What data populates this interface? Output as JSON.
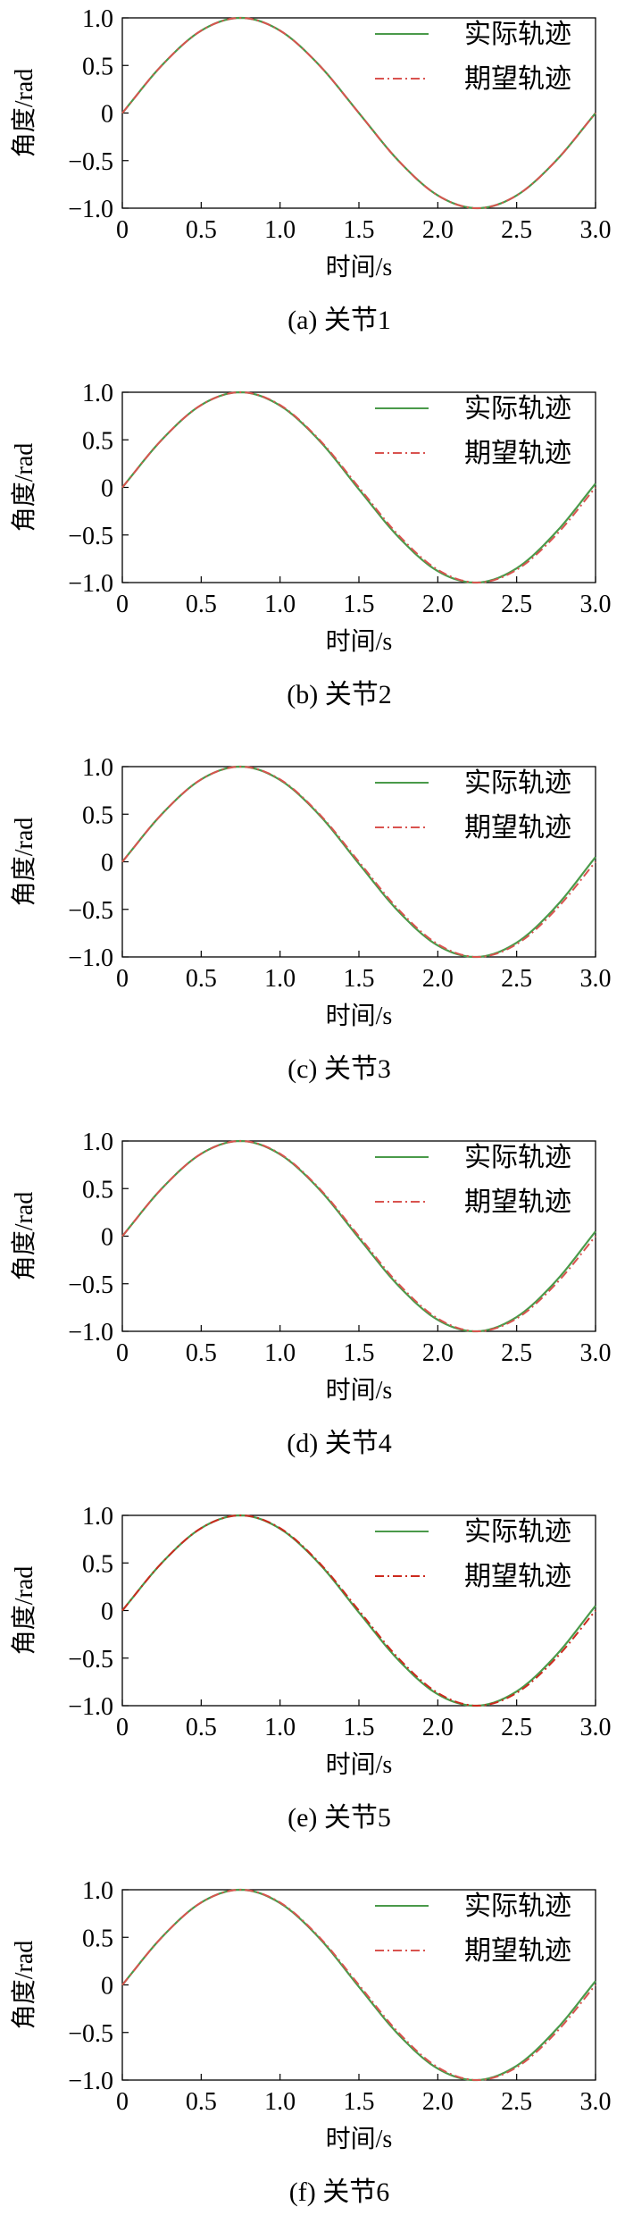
{
  "chart_data": [
    {
      "type": "line",
      "caption": "(a)  关节1",
      "xlabel": "时间/s",
      "ylabel": "角度/rad",
      "xlim": [
        0,
        3.0
      ],
      "ylim": [
        -1.0,
        1.0
      ],
      "x_ticks": [
        "0",
        "0.5",
        "1.0",
        "1.5",
        "2.0",
        "2.5",
        "3.0"
      ],
      "y_ticks": [
        "1.0",
        "0.5",
        "0",
        "−0.5",
        "−1.0"
      ],
      "grid": false,
      "legend_position": "top-right",
      "x": [
        0,
        0.25,
        0.5,
        0.75,
        1.0,
        1.25,
        1.5,
        1.75,
        2.0,
        2.25,
        2.5,
        2.75,
        3.0
      ],
      "series": [
        {
          "name": "实际轨迹",
          "style": "solid",
          "color": "#4a9a4a",
          "values": [
            0.0,
            0.5,
            0.866,
            1.0,
            0.866,
            0.5,
            0.0,
            -0.5,
            -0.866,
            -1.0,
            -0.866,
            -0.5,
            0.0
          ]
        },
        {
          "name": "期望轨迹",
          "style": "dashdot",
          "color": "#d9534f",
          "values": [
            0.0,
            0.5,
            0.866,
            1.0,
            0.866,
            0.5,
            0.0,
            -0.5,
            -0.866,
            -1.0,
            -0.866,
            -0.5,
            0.0
          ]
        }
      ]
    },
    {
      "type": "line",
      "caption": "(b)  关节2",
      "xlabel": "时间/s",
      "ylabel": "角度/rad",
      "xlim": [
        0,
        3.0
      ],
      "ylim": [
        -1.0,
        1.0
      ],
      "x_ticks": [
        "0",
        "0.5",
        "1.0",
        "1.5",
        "2.0",
        "2.5",
        "3.0"
      ],
      "y_ticks": [
        "1.0",
        "0.5",
        "0",
        "−0.5",
        "−1.0"
      ],
      "grid": false,
      "legend_position": "top-right",
      "x": [
        0,
        0.25,
        0.5,
        0.75,
        1.0,
        1.25,
        1.5,
        1.75,
        2.0,
        2.25,
        2.5,
        2.75,
        3.0
      ],
      "series": [
        {
          "name": "实际轨迹",
          "style": "solid",
          "color": "#4a9a4a",
          "values": [
            0.0,
            0.5,
            0.866,
            1.0,
            0.86,
            0.49,
            -0.02,
            -0.52,
            -0.88,
            -1.0,
            -0.85,
            -0.47,
            0.04
          ]
        },
        {
          "name": "期望轨迹",
          "style": "dashdot",
          "color": "#d9534f",
          "values": [
            0.0,
            0.5,
            0.866,
            1.0,
            0.866,
            0.5,
            0.0,
            -0.5,
            -0.866,
            -1.0,
            -0.866,
            -0.5,
            0.0
          ]
        }
      ]
    },
    {
      "type": "line",
      "caption": "(c)  关节3",
      "xlabel": "时间/s",
      "ylabel": "角度/rad",
      "xlim": [
        0,
        3.0
      ],
      "ylim": [
        -1.0,
        1.0
      ],
      "x_ticks": [
        "0",
        "0.5",
        "1.0",
        "1.5",
        "2.0",
        "2.5",
        "3.0"
      ],
      "y_ticks": [
        "1.0",
        "0.5",
        "0",
        "−0.5",
        "−1.0"
      ],
      "grid": false,
      "legend_position": "top-right",
      "x": [
        0,
        0.25,
        0.5,
        0.75,
        1.0,
        1.25,
        1.5,
        1.75,
        2.0,
        2.25,
        2.5,
        2.75,
        3.0
      ],
      "series": [
        {
          "name": "实际轨迹",
          "style": "solid",
          "color": "#4a9a4a",
          "values": [
            0.0,
            0.5,
            0.866,
            1.0,
            0.86,
            0.49,
            -0.02,
            -0.52,
            -0.88,
            -1.0,
            -0.85,
            -0.47,
            0.05
          ]
        },
        {
          "name": "期望轨迹",
          "style": "dashdot",
          "color": "#d9534f",
          "values": [
            0.0,
            0.5,
            0.866,
            1.0,
            0.866,
            0.5,
            0.0,
            -0.5,
            -0.866,
            -1.0,
            -0.866,
            -0.5,
            0.0
          ]
        }
      ]
    },
    {
      "type": "line",
      "caption": "(d)  关节4",
      "xlabel": "时间/s",
      "ylabel": "角度/rad",
      "xlim": [
        0,
        3.0
      ],
      "ylim": [
        -1.0,
        1.0
      ],
      "x_ticks": [
        "0",
        "0.5",
        "1.0",
        "1.5",
        "2.0",
        "2.5",
        "3.0"
      ],
      "y_ticks": [
        "1.0",
        "0.5",
        "0",
        "−0.5",
        "−1.0"
      ],
      "grid": false,
      "legend_position": "top-right",
      "x": [
        0,
        0.25,
        0.5,
        0.75,
        1.0,
        1.25,
        1.5,
        1.75,
        2.0,
        2.25,
        2.5,
        2.75,
        3.0
      ],
      "series": [
        {
          "name": "实际轨迹",
          "style": "solid",
          "color": "#4a9a4a",
          "values": [
            0.0,
            0.5,
            0.866,
            1.0,
            0.86,
            0.49,
            -0.02,
            -0.52,
            -0.88,
            -1.0,
            -0.85,
            -0.47,
            0.05
          ]
        },
        {
          "name": "期望轨迹",
          "style": "dashdot",
          "color": "#d9534f",
          "values": [
            0.0,
            0.5,
            0.866,
            1.0,
            0.866,
            0.5,
            0.0,
            -0.5,
            -0.866,
            -1.0,
            -0.866,
            -0.5,
            0.0
          ]
        }
      ]
    },
    {
      "type": "line",
      "caption": "(e)  关节5",
      "xlabel": "时间/s",
      "ylabel": "角度/rad",
      "xlim": [
        0,
        3.0
      ],
      "ylim": [
        -1.0,
        1.0
      ],
      "x_ticks": [
        "0",
        "0.5",
        "1.0",
        "1.5",
        "2.0",
        "2.5",
        "3.0"
      ],
      "y_ticks": [
        "1.0",
        "0.5",
        "0",
        "−0.5",
        "−1.0"
      ],
      "grid": false,
      "legend_position": "top-right",
      "x": [
        0,
        0.25,
        0.5,
        0.75,
        1.0,
        1.25,
        1.5,
        1.75,
        2.0,
        2.25,
        2.5,
        2.75,
        3.0
      ],
      "series": [
        {
          "name": "实际轨迹",
          "style": "solid",
          "color": "#4a9a4a",
          "values": [
            0.0,
            0.5,
            0.866,
            1.0,
            0.86,
            0.49,
            -0.02,
            -0.52,
            -0.88,
            -1.0,
            -0.85,
            -0.47,
            0.05
          ]
        },
        {
          "name": "期望轨迹",
          "style": "dashdot",
          "color": "#cc2a1e",
          "values": [
            0.0,
            0.5,
            0.866,
            1.0,
            0.866,
            0.5,
            0.0,
            -0.5,
            -0.866,
            -1.0,
            -0.866,
            -0.5,
            0.0
          ]
        }
      ]
    },
    {
      "type": "line",
      "caption": "(f)  关节6",
      "xlabel": "时间/s",
      "ylabel": "角度/rad",
      "xlim": [
        0,
        3.0
      ],
      "ylim": [
        -1.0,
        1.0
      ],
      "x_ticks": [
        "0",
        "0.5",
        "1.0",
        "1.5",
        "2.0",
        "2.5",
        "3.0"
      ],
      "y_ticks": [
        "1.0",
        "0.5",
        "0",
        "−0.5",
        "−1.0"
      ],
      "grid": false,
      "legend_position": "top-right",
      "x": [
        0,
        0.25,
        0.5,
        0.75,
        1.0,
        1.25,
        1.5,
        1.75,
        2.0,
        2.25,
        2.5,
        2.75,
        3.0
      ],
      "series": [
        {
          "name": "实际轨迹",
          "style": "solid",
          "color": "#4a9a4a",
          "values": [
            0.0,
            0.5,
            0.866,
            1.0,
            0.86,
            0.49,
            -0.02,
            -0.52,
            -0.88,
            -1.0,
            -0.85,
            -0.47,
            0.04
          ]
        },
        {
          "name": "期望轨迹",
          "style": "dashdot",
          "color": "#d9534f",
          "values": [
            0.0,
            0.5,
            0.866,
            1.0,
            0.866,
            0.5,
            0.0,
            -0.5,
            -0.866,
            -1.0,
            -0.866,
            -0.5,
            0.0
          ]
        }
      ]
    }
  ]
}
